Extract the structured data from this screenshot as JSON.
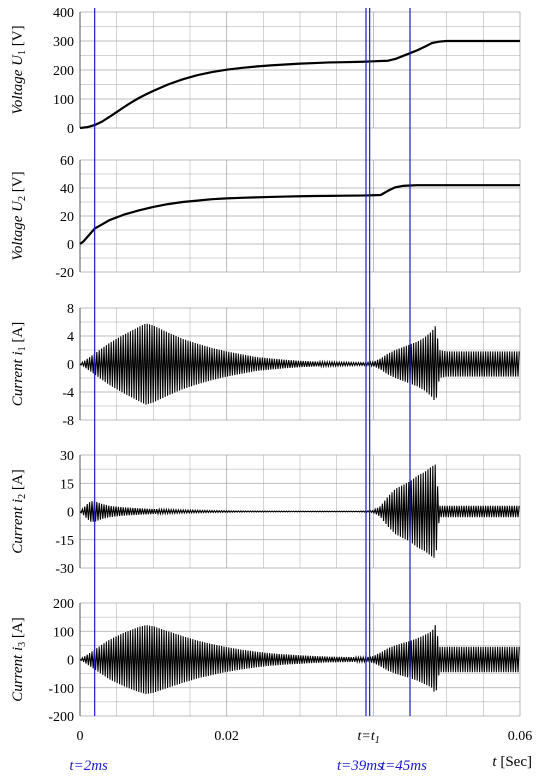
{
  "chart_data": [
    {
      "type": "line",
      "ylabel": "Voltage",
      "ylabel_symbol": "U",
      "ylabel_sub": "1",
      "ylabel_unit": "[V]",
      "ylim": [
        0,
        400
      ],
      "yticks": [
        0,
        100,
        200,
        300,
        400
      ],
      "series": [
        {
          "x": [
            0,
            0.001,
            0.002,
            0.003,
            0.004,
            0.005,
            0.006,
            0.007,
            0.008,
            0.009,
            0.01,
            0.012,
            0.014,
            0.016,
            0.018,
            0.02,
            0.022,
            0.024,
            0.026,
            0.028,
            0.03,
            0.032,
            0.034,
            0.036,
            0.038,
            0.039,
            0.04,
            0.041,
            0.042,
            0.043,
            0.044,
            0.045,
            0.046,
            0.047,
            0.048,
            0.049,
            0.05,
            0.052,
            0.054,
            0.056,
            0.058,
            0.06
          ],
          "y": [
            0,
            3,
            10,
            22,
            38,
            55,
            72,
            88,
            103,
            116,
            128,
            150,
            168,
            182,
            193,
            201,
            207,
            212,
            216,
            219,
            222,
            224,
            226,
            227,
            228,
            229,
            230,
            231,
            232,
            238,
            248,
            258,
            268,
            280,
            293,
            298,
            300,
            300,
            300,
            300,
            300,
            300
          ]
        }
      ]
    },
    {
      "type": "line",
      "ylabel": "Voltage",
      "ylabel_symbol": "U",
      "ylabel_sub": "2",
      "ylabel_unit": "[V]",
      "ylim": [
        -20,
        60
      ],
      "yticks": [
        -20,
        0,
        20,
        40,
        60
      ],
      "series": [
        {
          "x": [
            0,
            0.0005,
            0.001,
            0.0015,
            0.002,
            0.003,
            0.004,
            0.005,
            0.006,
            0.008,
            0.01,
            0.012,
            0.014,
            0.016,
            0.018,
            0.02,
            0.022,
            0.024,
            0.026,
            0.028,
            0.03,
            0.032,
            0.034,
            0.036,
            0.038,
            0.039,
            0.04,
            0.041,
            0.042,
            0.043,
            0.044,
            0.045,
            0.046,
            0.048,
            0.05,
            0.054,
            0.06
          ],
          "y": [
            0,
            2,
            5,
            8,
            11,
            14,
            17,
            19,
            21,
            24,
            26.5,
            28.5,
            30,
            31,
            32,
            32.6,
            33,
            33.3,
            33.6,
            33.9,
            34.1,
            34.3,
            34.4,
            34.5,
            34.6,
            34.7,
            34.8,
            35,
            38,
            40.5,
            41.5,
            41.8,
            42,
            42,
            42,
            42,
            42
          ]
        }
      ]
    },
    {
      "type": "area",
      "ylabel": "Current",
      "ylabel_symbol": "i",
      "ylabel_sub": "1",
      "ylabel_unit": "[A]",
      "ylim": [
        -8,
        8
      ],
      "yticks": [
        -8,
        -4,
        0,
        4,
        8
      ],
      "series": [
        {
          "x": [
            0,
            0.002,
            0.004,
            0.006,
            0.008,
            0.009,
            0.01,
            0.012,
            0.014,
            0.016,
            0.018,
            0.02,
            0.022,
            0.024,
            0.026,
            0.028,
            0.03,
            0.032,
            0.034,
            0.036,
            0.038,
            0.039,
            0.04,
            0.041,
            0.042,
            0.043,
            0.044,
            0.045,
            0.046,
            0.047,
            0.048,
            0.0485,
            0.049,
            0.05,
            0.06
          ],
          "envelope": [
            0,
            1.5,
            3,
            4.2,
            5.3,
            5.8,
            5.5,
            4.5,
            3.6,
            2.9,
            2.3,
            1.8,
            1.4,
            1.0,
            0.8,
            0.6,
            0.45,
            0.35,
            0.3,
            0.25,
            0.2,
            0.2,
            0.3,
            0.8,
            1.5,
            2.0,
            2.4,
            2.8,
            3.2,
            3.8,
            4.7,
            5.5,
            2.0,
            1.8,
            1.8
          ]
        }
      ]
    },
    {
      "type": "area",
      "ylabel": "Current",
      "ylabel_symbol": "i",
      "ylabel_sub": "2",
      "ylabel_unit": "[A]",
      "ylim": [
        -30,
        30
      ],
      "yticks": [
        -30,
        -15,
        0,
        15,
        30
      ],
      "series": [
        {
          "x": [
            0,
            0.0005,
            0.001,
            0.0015,
            0.002,
            0.003,
            0.004,
            0.006,
            0.008,
            0.01,
            0.014,
            0.018,
            0.022,
            0.026,
            0.03,
            0.034,
            0.038,
            0.04,
            0.041,
            0.042,
            0.043,
            0.044,
            0.045,
            0.046,
            0.047,
            0.048,
            0.0485,
            0.049,
            0.05,
            0.06
          ],
          "envelope": [
            0,
            2,
            4,
            5.5,
            5.5,
            4,
            3,
            2.2,
            1.7,
            1.3,
            0.8,
            0.5,
            0.3,
            0.25,
            0.2,
            0.2,
            0.2,
            0.5,
            3,
            8,
            12,
            14,
            16,
            19,
            21,
            24,
            25,
            3,
            3,
            3
          ]
        }
      ]
    },
    {
      "type": "area",
      "ylabel": "Current",
      "ylabel_symbol": "i",
      "ylabel_sub": "3",
      "ylabel_unit": "[A]",
      "ylim": [
        -200,
        200
      ],
      "yticks": [
        -200,
        -100,
        0,
        100,
        200
      ],
      "series": [
        {
          "x": [
            0,
            0.002,
            0.004,
            0.006,
            0.008,
            0.009,
            0.01,
            0.012,
            0.014,
            0.016,
            0.018,
            0.02,
            0.022,
            0.024,
            0.026,
            0.028,
            0.03,
            0.032,
            0.034,
            0.036,
            0.038,
            0.039,
            0.04,
            0.041,
            0.042,
            0.043,
            0.044,
            0.045,
            0.046,
            0.047,
            0.048,
            0.0485,
            0.049,
            0.05,
            0.06
          ],
          "envelope": [
            0,
            35,
            70,
            95,
            115,
            122,
            118,
            100,
            83,
            67,
            55,
            44,
            35,
            28,
            22,
            18,
            15,
            12,
            10,
            9,
            8,
            8,
            12,
            25,
            40,
            50,
            58,
            66,
            75,
            87,
            100,
            125,
            45,
            45,
            45
          ]
        }
      ]
    }
  ],
  "x_axis": {
    "xlim": [
      0,
      0.06
    ],
    "ticks": [
      0,
      0.02,
      0.04,
      0.06
    ],
    "tick_labels": [
      "0",
      "0.02",
      "",
      "0.06"
    ],
    "label_italic": "t",
    "label_unit": "[Sec]"
  },
  "markers": {
    "lines": [
      0.002,
      0.039,
      0.0395,
      0.045
    ],
    "labels": [
      {
        "x": 0.002,
        "text": "t=2ms"
      },
      {
        "x": 0.039,
        "text": "t=39ms"
      },
      {
        "x": 0.045,
        "text": "t=45ms"
      }
    ],
    "t1_label": "t=t",
    "t1_sub": "1"
  },
  "colors": {
    "trace": "#000000",
    "marker": "#1a1ad0",
    "grid": "#a8a8a8",
    "axis": "#555555"
  }
}
